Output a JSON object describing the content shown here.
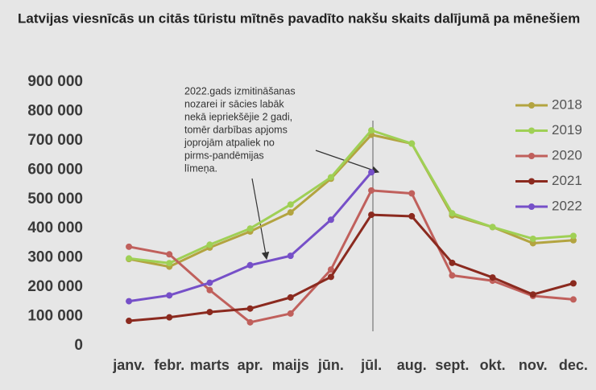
{
  "chart_data": {
    "type": "line",
    "title": "Latvijas viesnīcās un citās tūristu mītnēs pavadīto nakšu skaits dalījumā pa mēnešiem",
    "annotation": [
      "2022.gads izmitināšanas",
      "nozarei ir sācies labāk",
      "nekā iepriekšējie 2 gadi,",
      "tomēr darbības apjoms",
      "joprojām atpaliek no",
      "pirms-pandēmijas",
      "līmeņa."
    ],
    "categories": [
      "janv.",
      "febr.",
      "marts",
      "apr.",
      "maijs",
      "jūn.",
      "jūl.",
      "aug.",
      "sept.",
      "okt.",
      "nov.",
      "dec."
    ],
    "series": [
      {
        "name": "2018",
        "color": "#b3a440",
        "values": [
          296000,
          270000,
          335000,
          390000,
          455000,
          570000,
          720000,
          690000,
          445000,
          405000,
          350000,
          360000
        ]
      },
      {
        "name": "2019",
        "color": "#9fd055",
        "values": [
          298000,
          282000,
          345000,
          400000,
          482000,
          575000,
          735000,
          690000,
          452000,
          405000,
          365000,
          375000
        ]
      },
      {
        "name": "2020",
        "color": "#c0605c",
        "values": [
          338000,
          312000,
          190000,
          80000,
          110000,
          260000,
          530000,
          520000,
          240000,
          222000,
          170000,
          158000
        ]
      },
      {
        "name": "2021",
        "color": "#8b2a1f",
        "values": [
          85000,
          97000,
          115000,
          127000,
          165000,
          235000,
          447000,
          442000,
          283000,
          233000,
          175000,
          213000
        ]
      },
      {
        "name": "2022",
        "color": "#7650c8",
        "values": [
          152000,
          172000,
          215000,
          275000,
          307000,
          430000,
          592000,
          null,
          null,
          null,
          null,
          null
        ]
      }
    ],
    "ylim": [
      0,
      900000
    ],
    "yticks": [
      0,
      {
        "value": 100000,
        "label": "100 000"
      },
      {
        "value": 200000,
        "label": "200 000"
      },
      {
        "value": 300000,
        "label": "300 000"
      },
      {
        "value": 400000,
        "label": "400 000"
      },
      {
        "value": 500000,
        "label": "500 000"
      },
      {
        "value": 600000,
        "label": "600 000"
      },
      {
        "value": 700000,
        "label": "700 000"
      },
      {
        "value": 800000,
        "label": "800 000"
      },
      {
        "value": 900000,
        "label": "900 000"
      }
    ],
    "legend": "upper right"
  }
}
